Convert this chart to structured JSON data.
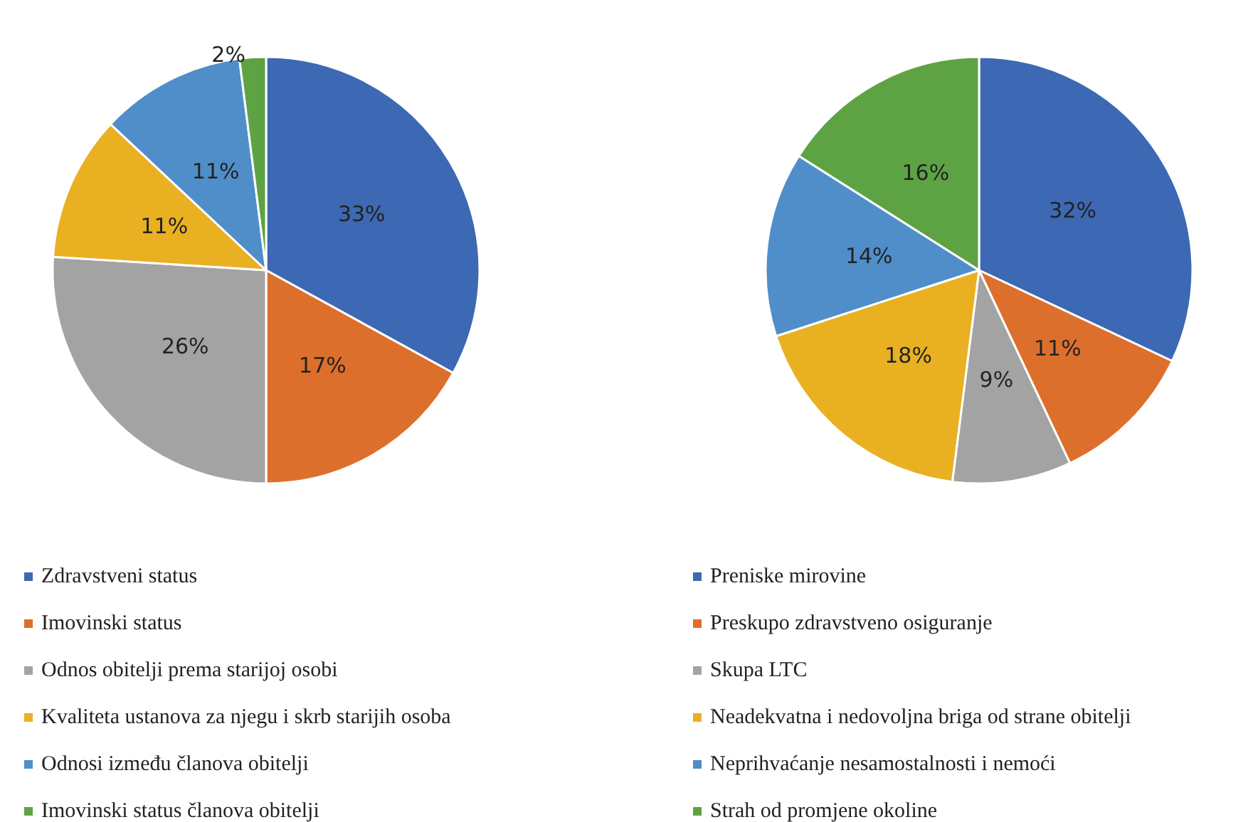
{
  "chart_data": [
    {
      "type": "pie",
      "categories": [
        "Zdravstveni status",
        "Imovinski status",
        "Odnos obitelji prema starijoj osobi",
        "Kvaliteta ustanova za njegu i skrb starijih osoba",
        "Odnosi između članova obitelji",
        "Imovinski status članova obitelji"
      ],
      "values": [
        33,
        17,
        26,
        11,
        11,
        2
      ],
      "value_labels": [
        "33%",
        "17%",
        "26%",
        "11%",
        "11%",
        "2%"
      ],
      "colors": [
        "#3d68b3",
        "#dd6f2c",
        "#a3a3a3",
        "#e9b022",
        "#4f8ec9",
        "#5ea343"
      ],
      "legend": "bottom"
    },
    {
      "type": "pie",
      "categories": [
        "Preniske mirovine",
        "Preskupo zdravstveno osiguranje",
        "Skupa LTC",
        "Neadekvatna i nedovoljna briga od strane obitelji",
        "Neprihvaćanje nesamostalnosti i nemoći",
        "Strah od promjene okoline"
      ],
      "values": [
        32,
        11,
        9,
        18,
        14,
        16
      ],
      "value_labels": [
        "32%",
        "11%",
        "9%",
        "18%",
        "14%",
        "16%"
      ],
      "colors": [
        "#3d68b3",
        "#dd6f2c",
        "#a3a3a3",
        "#e9b022",
        "#4f8ec9",
        "#5ea343"
      ],
      "legend": "bottom"
    }
  ]
}
